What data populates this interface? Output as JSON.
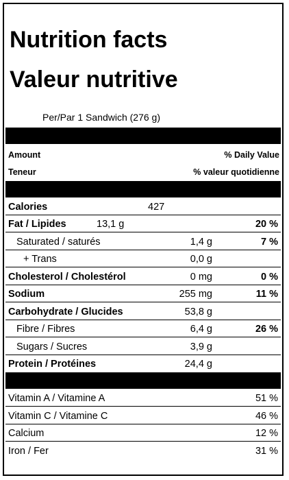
{
  "title_en": "Nutrition facts",
  "title_fr": "Valeur nutritive",
  "serving": "Per/Par 1 Sandwich  (276 g)",
  "header": {
    "amount": "Amount",
    "teneur": "Teneur",
    "dv_en": "% Daily Value",
    "dv_fr": "% valeur quotidienne"
  },
  "calories": {
    "label": "Calories",
    "value": "427"
  },
  "fat": {
    "label": "Fat / Lipides",
    "qty": "13,1 g",
    "dv": "20 %"
  },
  "saturated": {
    "label": "Saturated / saturés",
    "qty": "1,4 g",
    "dv": "7 %"
  },
  "trans": {
    "label": "+ Trans",
    "qty": "0,0 g"
  },
  "cholesterol": {
    "label": "Cholesterol / Cholestérol",
    "qty": "0 mg",
    "dv": "0 %"
  },
  "sodium": {
    "label": "Sodium",
    "qty": "255 mg",
    "dv": "11 %"
  },
  "carbohydrate": {
    "label": "Carbohydrate / Glucides",
    "qty": "53,8 g"
  },
  "fibre": {
    "label": "Fibre / Fibres",
    "qty": "6,4 g",
    "dv": "26 %"
  },
  "sugars": {
    "label": "Sugars / Sucres",
    "qty": "3,9 g"
  },
  "protein": {
    "label": "Protein / Protéines",
    "qty": "24,4 g"
  },
  "vitamins": [
    {
      "label": "Vitamin A / Vitamine A",
      "dv": "51 %"
    },
    {
      "label": "Vitamin C / Vitamine C",
      "dv": "46 %"
    },
    {
      "label": "Calcium",
      "dv": "12 %"
    },
    {
      "label": "Iron / Fer",
      "dv": "31 %"
    }
  ]
}
